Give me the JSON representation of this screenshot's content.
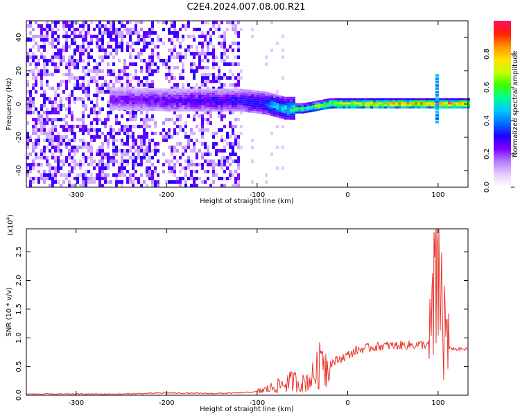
{
  "title": "C2E4.2024.007.08.00.R21",
  "chart_data": [
    {
      "type": "heatmap",
      "xlabel": "Height of straight line (km)",
      "ylabel": "Frequency (Hz)",
      "xlim": [
        -355,
        133
      ],
      "ylim": [
        -50,
        50
      ],
      "xticks": [
        -300,
        -200,
        -100,
        0,
        100
      ],
      "yticks": [
        -40,
        -20,
        0,
        20,
        40
      ],
      "grid": false,
      "colorbar": {
        "label": "Normalized spectral amplitude",
        "range": [
          0,
          1
        ],
        "ticks": [
          "0.0",
          "0.2",
          "0.4",
          "0.6",
          "0.8"
        ],
        "colors": [
          "#ffffff",
          "#e6ccff",
          "#b380ff",
          "#7f00ff",
          "#2000ff",
          "#0070ff",
          "#00c8ff",
          "#00ff90",
          "#40ff00",
          "#c8ff00",
          "#ffe000",
          "#ff9000",
          "#ff2000",
          "#ff1060"
        ]
      },
      "features": {
        "noise_region_x": [
          -355,
          -120
        ],
        "signal_track": [
          {
            "x": -265,
            "f": 3,
            "amp": 0.25
          },
          {
            "x": -200,
            "f": 2,
            "amp": 0.3
          },
          {
            "x": -120,
            "f": 2,
            "amp": 0.35
          },
          {
            "x": -90,
            "f": 0,
            "amp": 0.45
          },
          {
            "x": -70,
            "f": -3,
            "amp": 0.55
          },
          {
            "x": -50,
            "f": -3,
            "amp": 0.65
          },
          {
            "x": -20,
            "f": 0,
            "amp": 0.8
          },
          {
            "x": 0,
            "f": 0,
            "amp": 0.85
          },
          {
            "x": 50,
            "f": 0,
            "amp": 0.88
          },
          {
            "x": 90,
            "f": 0,
            "amp": 0.9
          },
          {
            "x": 133,
            "f": 0,
            "amp": 0.9
          }
        ]
      }
    },
    {
      "type": "line",
      "xlabel": "Height of straight line (km)",
      "ylabel": "SNR (10 * v/v)",
      "y_scale_note": "(x10",
      "y_scale_exp": "4",
      "xlim": [
        -355,
        133
      ],
      "ylim": [
        0,
        2.9
      ],
      "xticks": [
        -300,
        -200,
        -100,
        0,
        100
      ],
      "yticks": [
        "0.0",
        "0.5",
        "1.0",
        "1.5",
        "2.0",
        "2.5"
      ],
      "grid": false,
      "line_color": "#e8332a",
      "series": [
        {
          "x": [
            -355,
            -300,
            -250,
            -200,
            -150,
            -120,
            -100,
            -90,
            -80,
            -70,
            -60,
            -50,
            -40,
            -35,
            -30,
            -28,
            -25,
            -20,
            -10,
            0,
            10,
            20,
            40,
            60,
            80,
            90,
            95,
            98,
            100,
            102,
            104,
            106,
            108,
            110,
            115,
            120,
            133
          ],
          "y": [
            0.02,
            0.02,
            0.02,
            0.04,
            0.03,
            0.04,
            0.06,
            0.1,
            0.15,
            0.2,
            0.25,
            0.2,
            0.3,
            0.4,
            0.55,
            0.95,
            0.5,
            0.55,
            0.62,
            0.7,
            0.78,
            0.82,
            0.86,
            0.87,
            0.88,
            0.88,
            1.5,
            2.0,
            2.85,
            1.0,
            2.0,
            0.9,
            1.5,
            0.8,
            0.82,
            0.8,
            0.8
          ]
        }
      ]
    }
  ]
}
